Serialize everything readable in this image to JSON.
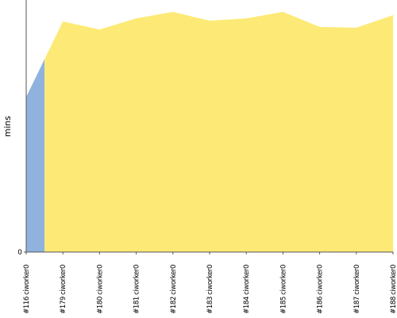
{
  "chart_data": {
    "type": "area",
    "y_label": "mins",
    "categories": [
      "#116 ciworker0",
      "#179 ciworker0",
      "#180 ciworker0",
      "#181 ciworker0",
      "#182 ciworker0",
      "#183 ciworker0",
      "#184 ciworker0",
      "#185 ciworker0",
      "#186 ciworker0",
      "#187 ciworker0",
      "#188 ciworker0"
    ],
    "series": [
      {
        "color": "#8fb3dd",
        "values": [
          6.15,
          null,
          null,
          null,
          null,
          null,
          null,
          null,
          null,
          null,
          null
        ]
      },
      {
        "color": "#fdea76",
        "values": [
          null,
          9.15,
          8.83,
          9.27,
          9.53,
          9.18,
          9.27,
          9.53,
          8.93,
          8.9,
          9.4
        ]
      }
    ],
    "ylim": [
      0,
      10
    ],
    "yticks": [
      0
    ]
  }
}
